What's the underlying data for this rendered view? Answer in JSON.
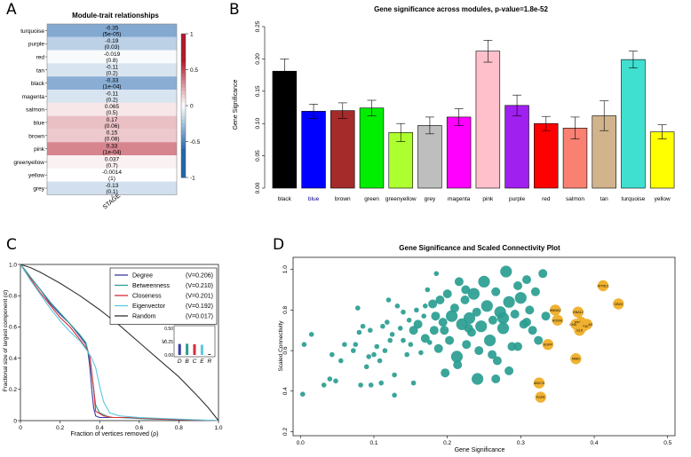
{
  "panels": {
    "a": "A",
    "b": "B",
    "c": "C",
    "d": "D"
  },
  "colors": {
    "heat_pos": "#b2182b",
    "heat_neg": "#2166ac",
    "teal": "#2a9d91",
    "gold": "#f0b232"
  },
  "chart_data": [
    {
      "id": "A",
      "type": "heatmap",
      "title": "Module-trait relationships",
      "xlabel": "STAGE",
      "rows": [
        {
          "module": "turquoise",
          "cor": "-0.35",
          "p": "(5e-05)",
          "v": -0.35
        },
        {
          "module": "purple",
          "cor": "-0.19",
          "p": "(0.03)",
          "v": -0.19
        },
        {
          "module": "red",
          "cor": "-0.019",
          "p": "(0.8)",
          "v": -0.019
        },
        {
          "module": "tan",
          "cor": "-0.11",
          "p": "(0.2)",
          "v": -0.11
        },
        {
          "module": "black",
          "cor": "-0.33",
          "p": "(1e-04)",
          "v": -0.33
        },
        {
          "module": "magenta",
          "cor": "-0.11",
          "p": "(0.2)",
          "v": -0.11
        },
        {
          "module": "salmon",
          "cor": "0.065",
          "p": "(0.5)",
          "v": 0.065
        },
        {
          "module": "blue",
          "cor": "0.17",
          "p": "(0.06)",
          "v": 0.17
        },
        {
          "module": "brown",
          "cor": "0.15",
          "p": "(0.08)",
          "v": 0.15
        },
        {
          "module": "pink",
          "cor": "0.33",
          "p": "(1e-04)",
          "v": 0.33
        },
        {
          "module": "greenyellow",
          "cor": "0.037",
          "p": "(0.7)",
          "v": 0.037
        },
        {
          "module": "yellow",
          "cor": "-0.0014",
          "p": "(1)",
          "v": -0.0014
        },
        {
          "module": "grey",
          "cor": "-0.13",
          "p": "(0.1)",
          "v": -0.13
        }
      ],
      "legend": {
        "ticks": [
          "1",
          "0.5",
          "0",
          "-0.5",
          "-1"
        ],
        "range": [
          -1,
          1
        ]
      }
    },
    {
      "id": "B",
      "type": "bar",
      "title": "Gene significance across modules, p-value=1.8e-52",
      "ylabel": "Gene Significance",
      "ylim": [
        0,
        0.25
      ],
      "yticks": [
        "0.00",
        "0.05",
        "0.10",
        "0.15",
        "0.20",
        "0.25"
      ],
      "categories": [
        "black",
        "blue",
        "brown",
        "green",
        "greenyellow",
        "grey",
        "magenta",
        "pink",
        "purple",
        "red",
        "salmon",
        "tan",
        "turquoise",
        "yellow"
      ],
      "values": [
        0.181,
        0.119,
        0.12,
        0.124,
        0.086,
        0.097,
        0.11,
        0.212,
        0.128,
        0.1,
        0.093,
        0.112,
        0.199,
        0.087
      ],
      "errors": [
        0.019,
        0.011,
        0.012,
        0.012,
        0.014,
        0.013,
        0.013,
        0.017,
        0.016,
        0.011,
        0.017,
        0.023,
        0.013,
        0.011
      ],
      "bar_colors": [
        "#000000",
        "#0000ff",
        "#a52a2a",
        "#00ee00",
        "#adff2f",
        "#bebebe",
        "#ff00ff",
        "#ffc0cb",
        "#a020f0",
        "#ff0000",
        "#fa8072",
        "#d2b48c",
        "#40e0d0",
        "#ffff00"
      ]
    },
    {
      "id": "C",
      "type": "line",
      "xlabel": "Fraction of vertices removed (ρ)",
      "ylabel": "Fractional size of largest component (σ)",
      "xlim": [
        0,
        1
      ],
      "ylim": [
        0,
        1
      ],
      "xticks": [
        "0",
        "0.2",
        "0.4",
        "0.6",
        "0.8",
        "1.0"
      ],
      "yticks": [
        "0",
        "0.2",
        "0.4",
        "0.6",
        "0.8",
        "1.0"
      ],
      "series": [
        {
          "name": "Degree",
          "stat": "(V=0.206)",
          "color": "#3b3b9c",
          "x": [
            0,
            0.02,
            0.05,
            0.1,
            0.15,
            0.2,
            0.25,
            0.3,
            0.33,
            0.34,
            0.35,
            0.36,
            0.37,
            0.38,
            0.4,
            0.45,
            0.55,
            0.7,
            1.0
          ],
          "y": [
            1.0,
            0.97,
            0.92,
            0.84,
            0.75,
            0.68,
            0.62,
            0.54,
            0.49,
            0.45,
            0.35,
            0.2,
            0.08,
            0.03,
            0.02,
            0.02,
            0.02,
            0.01,
            0.0
          ]
        },
        {
          "name": "Betweenness",
          "stat": "(V=0.210)",
          "color": "#2a9d8f",
          "x": [
            0,
            0.02,
            0.05,
            0.1,
            0.15,
            0.2,
            0.25,
            0.3,
            0.33,
            0.35,
            0.37,
            0.38,
            0.4,
            0.45,
            0.5,
            0.65,
            1.0
          ],
          "y": [
            1.0,
            0.97,
            0.92,
            0.84,
            0.76,
            0.69,
            0.62,
            0.55,
            0.5,
            0.4,
            0.2,
            0.1,
            0.05,
            0.02,
            0.02,
            0.01,
            0.0
          ]
        },
        {
          "name": "Closeness",
          "stat": "(V=0.201)",
          "color": "#d62d3b",
          "x": [
            0,
            0.02,
            0.05,
            0.1,
            0.15,
            0.2,
            0.25,
            0.3,
            0.33,
            0.35,
            0.37,
            0.38,
            0.42,
            0.47,
            0.55,
            0.7,
            1.0
          ],
          "y": [
            1.0,
            0.96,
            0.91,
            0.82,
            0.74,
            0.66,
            0.6,
            0.52,
            0.47,
            0.42,
            0.2,
            0.06,
            0.03,
            0.02,
            0.02,
            0.01,
            0.0
          ]
        },
        {
          "name": "Eigenvector",
          "stat": "(V=0.192)",
          "color": "#5bc8e0",
          "x": [
            0,
            0.02,
            0.05,
            0.1,
            0.15,
            0.2,
            0.25,
            0.3,
            0.33,
            0.36,
            0.38,
            0.4,
            0.42,
            0.45,
            0.5,
            0.6,
            1.0
          ],
          "y": [
            1.0,
            0.96,
            0.9,
            0.81,
            0.72,
            0.64,
            0.57,
            0.51,
            0.46,
            0.4,
            0.34,
            0.22,
            0.12,
            0.05,
            0.03,
            0.02,
            0.0
          ]
        },
        {
          "name": "Random",
          "stat": "(V=0.017)",
          "color": "#333333",
          "x": [
            0,
            0.05,
            0.1,
            0.2,
            0.3,
            0.4,
            0.5,
            0.6,
            0.7,
            0.8,
            0.9,
            0.95,
            1.0
          ],
          "y": [
            1.0,
            0.98,
            0.95,
            0.88,
            0.8,
            0.71,
            0.61,
            0.5,
            0.39,
            0.28,
            0.15,
            0.08,
            0.0
          ]
        }
      ],
      "inset": {
        "ylabel": "V",
        "yticks": [
          "0.00",
          "0.25",
          "0.50"
        ],
        "ylim": [
          0,
          0.5
        ],
        "labels": [
          "D",
          "B",
          "C",
          "E",
          "R"
        ],
        "values": [
          0.206,
          0.21,
          0.201,
          0.192,
          0.017
        ],
        "colors": [
          "#3b3b9c",
          "#2a9d8f",
          "#d62d3b",
          "#5bc8e0",
          "#333333"
        ]
      }
    },
    {
      "id": "D",
      "type": "scatter",
      "title": "Gene Significance and Scaled Connectivity Plot",
      "xlabel": "Gene Significance",
      "ylabel": "Scaled Connectivity",
      "xlim": [
        -0.01,
        0.51
      ],
      "ylim": [
        0.18,
        1.06
      ],
      "xticks": [
        "0.0",
        "0.1",
        "0.2",
        "0.3",
        "0.4",
        "0.5"
      ],
      "yticks": [
        "0.2",
        "0.4",
        "0.6",
        "0.8",
        "1.0"
      ],
      "points": [
        [
          0.003,
          0.385,
          1
        ],
        [
          0.005,
          0.63,
          1
        ],
        [
          0.015,
          0.68,
          1
        ],
        [
          0.032,
          0.43,
          1
        ],
        [
          0.04,
          0.46,
          1
        ],
        [
          0.043,
          0.58,
          1
        ],
        [
          0.048,
          0.45,
          1
        ],
        [
          0.055,
          0.55,
          1
        ],
        [
          0.06,
          0.63,
          1
        ],
        [
          0.072,
          0.6,
          1
        ],
        [
          0.075,
          0.63,
          1
        ],
        [
          0.078,
          0.81,
          1
        ],
        [
          0.08,
          0.69,
          1
        ],
        [
          0.082,
          0.43,
          1
        ],
        [
          0.085,
          0.72,
          1
        ],
        [
          0.09,
          0.52,
          1
        ],
        [
          0.093,
          0.57,
          1
        ],
        [
          0.095,
          0.7,
          1
        ],
        [
          0.1,
          0.58,
          1
        ],
        [
          0.104,
          0.62,
          1
        ],
        [
          0.108,
          0.55,
          1
        ],
        [
          0.11,
          0.44,
          1
        ],
        [
          0.112,
          0.72,
          1
        ],
        [
          0.115,
          0.6,
          1
        ],
        [
          0.118,
          0.74,
          1
        ],
        [
          0.122,
          0.65,
          1
        ],
        [
          0.125,
          0.68,
          1
        ],
        [
          0.128,
          0.48,
          1
        ],
        [
          0.132,
          0.82,
          1
        ],
        [
          0.136,
          0.71,
          1
        ],
        [
          0.14,
          0.65,
          1
        ],
        [
          0.145,
          0.58,
          1
        ],
        [
          0.148,
          0.75,
          1
        ],
        [
          0.15,
          0.63,
          1
        ],
        [
          0.154,
          0.44,
          1
        ],
        [
          0.158,
          0.8,
          1
        ],
        [
          0.16,
          0.73,
          2
        ],
        [
          0.164,
          0.59,
          1
        ],
        [
          0.168,
          0.77,
          1
        ],
        [
          0.17,
          0.82,
          1
        ],
        [
          0.173,
          0.9,
          1
        ],
        [
          0.176,
          0.64,
          1
        ],
        [
          0.18,
          0.83,
          2
        ],
        [
          0.182,
          0.7,
          2
        ],
        [
          0.185,
          0.98,
          1
        ],
        [
          0.188,
          0.61,
          2
        ],
        [
          0.19,
          0.85,
          2
        ],
        [
          0.194,
          0.74,
          2
        ],
        [
          0.197,
          0.49,
          2
        ],
        [
          0.2,
          0.88,
          2
        ],
        [
          0.203,
          0.65,
          2
        ],
        [
          0.206,
          0.77,
          3
        ],
        [
          0.21,
          0.81,
          2
        ],
        [
          0.213,
          0.57,
          3
        ],
        [
          0.216,
          0.94,
          2
        ],
        [
          0.22,
          0.73,
          3
        ],
        [
          0.224,
          0.85,
          2
        ],
        [
          0.226,
          0.63,
          2
        ],
        [
          0.23,
          0.76,
          3
        ],
        [
          0.233,
          0.69,
          2
        ],
        [
          0.236,
          0.88,
          3
        ],
        [
          0.24,
          0.79,
          2
        ],
        [
          0.243,
          0.6,
          2
        ],
        [
          0.246,
          0.72,
          3
        ],
        [
          0.25,
          0.94,
          3
        ],
        [
          0.254,
          0.82,
          3
        ],
        [
          0.258,
          0.65,
          3
        ],
        [
          0.262,
          0.75,
          2
        ],
        [
          0.266,
          0.89,
          2
        ],
        [
          0.268,
          0.55,
          2
        ],
        [
          0.272,
          0.79,
          3
        ],
        [
          0.276,
          0.71,
          3
        ],
        [
          0.28,
          0.99,
          3
        ],
        [
          0.284,
          0.84,
          3
        ],
        [
          0.288,
          0.62,
          2
        ],
        [
          0.292,
          0.78,
          2
        ],
        [
          0.296,
          0.92,
          2
        ],
        [
          0.3,
          0.86,
          3
        ],
        [
          0.304,
          0.73,
          2
        ],
        [
          0.308,
          0.95,
          2
        ],
        [
          0.312,
          0.8,
          2
        ],
        [
          0.316,
          0.7,
          2
        ],
        [
          0.32,
          0.89,
          2
        ],
        [
          0.324,
          0.65,
          2
        ],
        [
          0.33,
          0.98,
          2
        ],
        [
          0.334,
          0.77,
          2
        ],
        [
          0.229,
          0.71,
          2
        ],
        [
          0.241,
          0.46,
          3
        ],
        [
          0.214,
          0.53,
          2
        ],
        [
          0.276,
          0.76,
          3
        ],
        [
          0.196,
          0.7,
          2
        ],
        [
          0.261,
          0.58,
          2
        ],
        [
          0.284,
          0.5,
          2
        ],
        [
          0.308,
          0.74,
          2
        ],
        [
          0.184,
          0.77,
          2
        ],
        [
          0.17,
          0.66,
          2
        ],
        [
          0.154,
          0.7,
          2
        ],
        [
          0.225,
          0.9,
          2
        ],
        [
          0.296,
          0.62,
          2
        ],
        [
          0.266,
          0.46,
          2
        ],
        [
          0.128,
          0.38,
          1
        ],
        [
          0.096,
          0.43,
          1
        ],
        [
          0.14,
          0.79,
          1
        ],
        [
          0.12,
          0.85,
          1
        ]
      ],
      "highlighted": [
        {
          "x": 0.347,
          "y": 0.8,
          "label": "HMGA2"
        },
        {
          "x": 0.35,
          "y": 0.75,
          "label": "HOXA1"
        },
        {
          "x": 0.375,
          "y": 0.73,
          "label": "CHAF1B"
        },
        {
          "x": 0.382,
          "y": 0.74,
          "label": "PKDATP"
        },
        {
          "x": 0.39,
          "y": 0.73,
          "label": "PIGEA3"
        },
        {
          "x": 0.378,
          "y": 0.79,
          "label": "GNA12"
        },
        {
          "x": 0.385,
          "y": 0.72,
          "label": "CNX10"
        },
        {
          "x": 0.38,
          "y": 0.7,
          "label": "GL5"
        },
        {
          "x": 0.337,
          "y": 0.63,
          "label": "EGFR"
        },
        {
          "x": 0.375,
          "y": 0.56,
          "label": "MMD"
        },
        {
          "x": 0.412,
          "y": 0.92,
          "label": "ATF5C1"
        },
        {
          "x": 0.433,
          "y": 0.83,
          "label": "CBX3"
        },
        {
          "x": 0.325,
          "y": 0.44,
          "label": "ABCC9"
        },
        {
          "x": 0.327,
          "y": 0.37,
          "label": "FGFR"
        }
      ]
    }
  ]
}
